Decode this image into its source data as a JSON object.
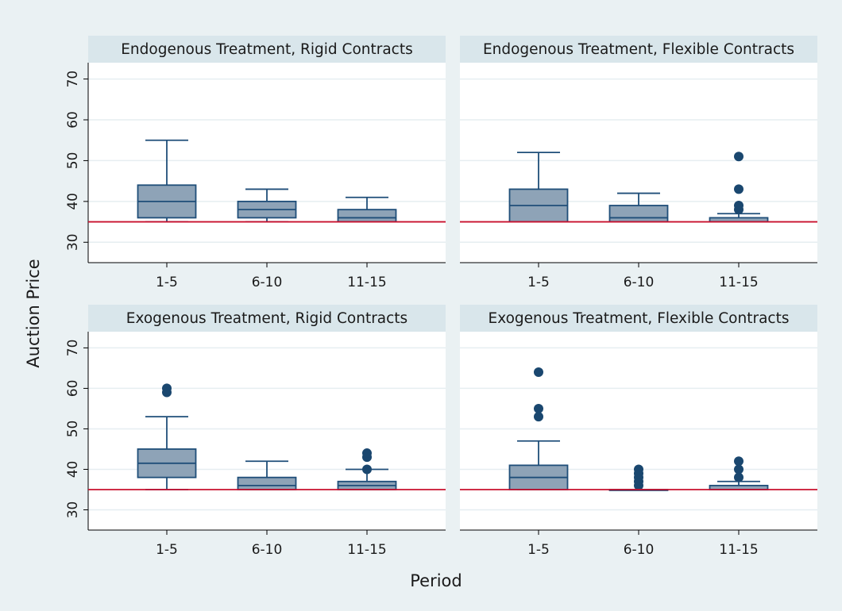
{
  "colors": {
    "background": "#eaf1f3",
    "plot_background": "#ffffff",
    "panel_header": "#d9e6eb",
    "gridline": "#e6eef1",
    "box_fill": "#8ea3b7",
    "box_stroke": "#1f4e79",
    "outlier": "#1a476f",
    "reference_line": "#c8102e",
    "axis": "#000000"
  },
  "chart_data": {
    "type": "box",
    "xlabel": "Period",
    "ylabel": "Auction Price",
    "categories": [
      "1-5",
      "6-10",
      "11-15"
    ],
    "ylim": [
      25,
      74
    ],
    "yticks": [
      30,
      40,
      50,
      60,
      70
    ],
    "grid": true,
    "reference_line": 35,
    "panels": [
      {
        "title": "Endogenous Treatment, Rigid Contracts",
        "boxes": [
          {
            "category": "1-5",
            "whisker_low": 35,
            "q1": 36,
            "median": 40,
            "q3": 44,
            "whisker_high": 55,
            "outliers": []
          },
          {
            "category": "6-10",
            "whisker_low": 35,
            "q1": 36,
            "median": 38,
            "q3": 40,
            "whisker_high": 43,
            "outliers": []
          },
          {
            "category": "11-15",
            "whisker_low": 35,
            "q1": 35,
            "median": 36,
            "q3": 38,
            "whisker_high": 41,
            "outliers": []
          }
        ]
      },
      {
        "title": "Endogenous Treatment, Flexible Contracts",
        "boxes": [
          {
            "category": "1-5",
            "whisker_low": 35,
            "q1": 35,
            "median": 39,
            "q3": 43,
            "whisker_high": 52,
            "outliers": []
          },
          {
            "category": "6-10",
            "whisker_low": 35,
            "q1": 35,
            "median": 36,
            "q3": 39,
            "whisker_high": 42,
            "outliers": []
          },
          {
            "category": "11-15",
            "whisker_low": 35,
            "q1": 35,
            "median": 35,
            "q3": 36,
            "whisker_high": 37,
            "outliers": [
              38,
              39,
              43,
              51
            ]
          }
        ]
      },
      {
        "title": "Exogenous Treatment, Rigid Contracts",
        "boxes": [
          {
            "category": "1-5",
            "whisker_low": 35,
            "q1": 38,
            "median": 41.5,
            "q3": 45,
            "whisker_high": 53,
            "outliers": [
              59,
              60
            ]
          },
          {
            "category": "6-10",
            "whisker_low": 35,
            "q1": 35,
            "median": 36,
            "q3": 38,
            "whisker_high": 42,
            "outliers": []
          },
          {
            "category": "11-15",
            "whisker_low": 35,
            "q1": 35,
            "median": 36,
            "q3": 37,
            "whisker_high": 40,
            "outliers": [
              40,
              43,
              44
            ]
          }
        ]
      },
      {
        "title": "Exogenous Treatment, Flexible Contracts",
        "boxes": [
          {
            "category": "1-5",
            "whisker_low": 35,
            "q1": 35,
            "median": 38,
            "q3": 41,
            "whisker_high": 47,
            "outliers": [
              53,
              55,
              64
            ]
          },
          {
            "category": "6-10",
            "whisker_low": 35,
            "q1": 35,
            "median": 35,
            "q3": 35,
            "whisker_high": 35,
            "outliers": [
              36,
              37,
              38,
              39,
              40
            ]
          },
          {
            "category": "11-15",
            "whisker_low": 35,
            "q1": 35,
            "median": 35,
            "q3": 36,
            "whisker_high": 37,
            "outliers": [
              38,
              40,
              42
            ]
          }
        ]
      }
    ]
  }
}
